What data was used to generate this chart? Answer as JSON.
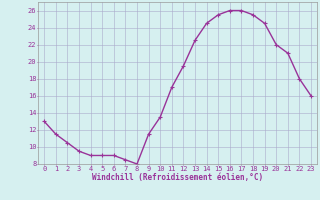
{
  "x": [
    0,
    1,
    2,
    3,
    4,
    5,
    6,
    7,
    8,
    9,
    10,
    11,
    12,
    13,
    14,
    15,
    16,
    17,
    18,
    19,
    20,
    21,
    22,
    23
  ],
  "y": [
    13,
    11.5,
    10.5,
    9.5,
    9,
    9,
    9,
    8.5,
    8,
    11.5,
    13.5,
    17,
    19.5,
    22.5,
    24.5,
    25.5,
    26,
    26,
    25.5,
    24.5,
    22,
    21,
    18,
    16
  ],
  "line_color": "#993399",
  "marker": "+",
  "marker_size": 3,
  "marker_linewidth": 0.8,
  "background_color": "#d6f0f0",
  "grid_color": "#aaaacc",
  "xlabel": "Windchill (Refroidissement éolien,°C)",
  "xlabel_fontsize": 5.5,
  "ytick_labels": [
    "8",
    "10",
    "12",
    "14",
    "16",
    "18",
    "20",
    "22",
    "24",
    "26"
  ],
  "ytick_values": [
    8,
    10,
    12,
    14,
    16,
    18,
    20,
    22,
    24,
    26
  ],
  "xtick_labels": [
    "0",
    "1",
    "2",
    "3",
    "4",
    "5",
    "6",
    "7",
    "8",
    "9",
    "10",
    "11",
    "12",
    "13",
    "14",
    "15",
    "16",
    "17",
    "18",
    "19",
    "20",
    "21",
    "22",
    "23"
  ],
  "xlim": [
    -0.5,
    23.5
  ],
  "ylim": [
    8,
    27
  ],
  "tick_color": "#993399",
  "tick_fontsize": 5,
  "spine_color": "#999999",
  "linewidth": 1.0
}
